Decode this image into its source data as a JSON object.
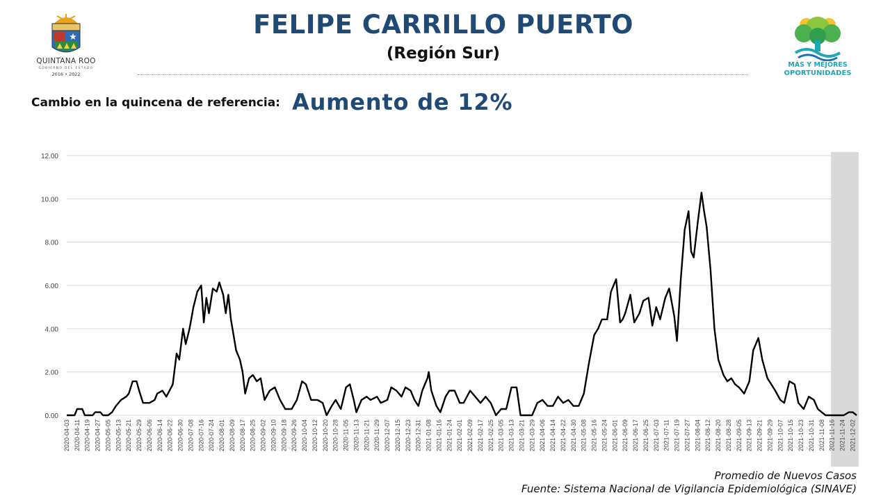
{
  "header": {
    "title": "FELIPE CARRILLO PUERTO",
    "subtitle": "(Región Sur)",
    "left_logo": {
      "brand": "QUINTANA ROO",
      "sub": "GOBIERNO DEL ESTADO",
      "years": "2016 • 2022"
    },
    "right_logo": {
      "line1": "MÁS Y MEJORES",
      "line2": "OPORTUNIDADES",
      "accent": "#1fa8b8"
    }
  },
  "change": {
    "label": "Cambio en la quincena de referencia:",
    "value": "Aumento de 12%"
  },
  "footer": {
    "metric": "Promedio de Nuevos Casos",
    "source": "Fuente: Sistema Nacional de Vigilancia Epidemiológica (SINAVE)"
  },
  "colors": {
    "title": "#1f4a75",
    "line": "#000000",
    "shade": "#d9d9d9",
    "grid": "#d9d9d9"
  },
  "chart_data": {
    "type": "line",
    "title": "",
    "xlabel": "",
    "ylabel": "",
    "ylim": [
      0,
      12
    ],
    "yticks": [
      "0.00",
      "2.00",
      "4.00",
      "6.00",
      "8.00",
      "10.00",
      "12.00"
    ],
    "grid": true,
    "x_start": "2020-04-03",
    "x_end": "2021-12-05",
    "shaded_region": [
      "2021-11-13",
      "2021-12-05"
    ],
    "xticks": [
      "2020-04-03",
      "2020-04-11",
      "2020-04-19",
      "2020-04-27",
      "2020-05-05",
      "2020-05-13",
      "2020-05-21",
      "2020-05-29",
      "2020-06-06",
      "2020-06-14",
      "2020-06-22",
      "2020-06-30",
      "2020-07-08",
      "2020-07-16",
      "2020-07-24",
      "2020-08-01",
      "2020-08-09",
      "2020-08-17",
      "2020-08-25",
      "2020-09-02",
      "2020-09-10",
      "2020-09-18",
      "2020-09-26",
      "2020-10-04",
      "2020-10-12",
      "2020-10-20",
      "2020-10-28",
      "2020-11-05",
      "2020-11-13",
      "2020-11-21",
      "2020-11-29",
      "2020-12-07",
      "2020-12-15",
      "2020-12-23",
      "2020-12-31",
      "2021-01-08",
      "2021-01-16",
      "2021-01-24",
      "2021-02-01",
      "2021-02-09",
      "2021-02-17",
      "2021-02-25",
      "2021-03-05",
      "2021-03-13",
      "2021-03-21",
      "2021-03-29",
      "2021-04-06",
      "2021-04-14",
      "2021-04-22",
      "2021-04-30",
      "2021-05-08",
      "2021-05-16",
      "2021-05-24",
      "2021-06-01",
      "2021-06-09",
      "2021-06-17",
      "2021-06-25",
      "2021-07-03",
      "2021-07-11",
      "2021-07-19",
      "2021-07-27",
      "2021-08-04",
      "2021-08-12",
      "2021-08-20",
      "2021-08-28",
      "2021-09-05",
      "2021-09-13",
      "2021-09-21",
      "2021-09-29",
      "2021-10-07",
      "2021-10-15",
      "2021-10-23",
      "2021-10-31",
      "2021-11-08",
      "2021-11-16",
      "2021-11-24",
      "2021-12-02"
    ],
    "series": [
      {
        "points": [
          [
            "2020-04-03",
            0
          ],
          [
            "2020-04-09",
            0
          ],
          [
            "2020-04-11",
            0.29
          ],
          [
            "2020-04-15",
            0.29
          ],
          [
            "2020-04-17",
            0
          ],
          [
            "2020-04-23",
            0
          ],
          [
            "2020-04-25",
            0.14
          ],
          [
            "2020-04-29",
            0.14
          ],
          [
            "2020-05-01",
            0
          ],
          [
            "2020-05-05",
            0
          ],
          [
            "2020-05-08",
            0.14
          ],
          [
            "2020-05-11",
            0.43
          ],
          [
            "2020-05-15",
            0.71
          ],
          [
            "2020-05-19",
            0.86
          ],
          [
            "2020-05-21",
            1
          ],
          [
            "2020-05-24",
            1.57
          ],
          [
            "2020-05-27",
            1.57
          ],
          [
            "2020-05-29",
            1.14
          ],
          [
            "2020-06-01",
            0.57
          ],
          [
            "2020-06-06",
            0.57
          ],
          [
            "2020-06-10",
            0.71
          ],
          [
            "2020-06-12",
            1
          ],
          [
            "2020-06-16",
            1.14
          ],
          [
            "2020-06-19",
            0.86
          ],
          [
            "2020-06-24",
            1.43
          ],
          [
            "2020-06-27",
            2.86
          ],
          [
            "2020-06-29",
            2.57
          ],
          [
            "2020-07-02",
            4
          ],
          [
            "2020-07-04",
            3.29
          ],
          [
            "2020-07-07",
            4
          ],
          [
            "2020-07-10",
            5
          ],
          [
            "2020-07-13",
            5.71
          ],
          [
            "2020-07-16",
            6
          ],
          [
            "2020-07-18",
            4.29
          ],
          [
            "2020-07-20",
            5.43
          ],
          [
            "2020-07-22",
            4.71
          ],
          [
            "2020-07-25",
            5.86
          ],
          [
            "2020-07-28",
            5.71
          ],
          [
            "2020-07-30",
            6.14
          ],
          [
            "2020-08-02",
            5.57
          ],
          [
            "2020-08-04",
            4.71
          ],
          [
            "2020-08-06",
            5.57
          ],
          [
            "2020-08-08",
            4.43
          ],
          [
            "2020-08-12",
            3
          ],
          [
            "2020-08-15",
            2.57
          ],
          [
            "2020-08-17",
            2
          ],
          [
            "2020-08-19",
            1
          ],
          [
            "2020-08-22",
            1.71
          ],
          [
            "2020-08-25",
            1.86
          ],
          [
            "2020-08-28",
            1.57
          ],
          [
            "2020-08-31",
            1.71
          ],
          [
            "2020-09-03",
            0.71
          ],
          [
            "2020-09-07",
            1.14
          ],
          [
            "2020-09-11",
            1.29
          ],
          [
            "2020-09-15",
            0.71
          ],
          [
            "2020-09-19",
            0.29
          ],
          [
            "2020-09-24",
            0.29
          ],
          [
            "2020-09-28",
            0.71
          ],
          [
            "2020-10-02",
            1.57
          ],
          [
            "2020-10-05",
            1.43
          ],
          [
            "2020-10-09",
            0.71
          ],
          [
            "2020-10-14",
            0.71
          ],
          [
            "2020-10-18",
            0.57
          ],
          [
            "2020-10-21",
            0
          ],
          [
            "2020-10-25",
            0.43
          ],
          [
            "2020-10-28",
            0.71
          ],
          [
            "2020-11-01",
            0.29
          ],
          [
            "2020-11-05",
            1.29
          ],
          [
            "2020-11-08",
            1.43
          ],
          [
            "2020-11-11",
            0.71
          ],
          [
            "2020-11-13",
            0.14
          ],
          [
            "2020-11-17",
            0.71
          ],
          [
            "2020-11-21",
            0.86
          ],
          [
            "2020-11-24",
            0.71
          ],
          [
            "2020-11-29",
            0.86
          ],
          [
            "2020-12-02",
            0.57
          ],
          [
            "2020-12-07",
            0.71
          ],
          [
            "2020-12-10",
            1.29
          ],
          [
            "2020-12-14",
            1.14
          ],
          [
            "2020-12-18",
            0.86
          ],
          [
            "2020-12-21",
            1.29
          ],
          [
            "2020-12-25",
            1.14
          ],
          [
            "2020-12-28",
            0.71
          ],
          [
            "2020-12-31",
            0.43
          ],
          [
            "2021-01-03",
            1.14
          ],
          [
            "2021-01-07",
            1.71
          ],
          [
            "2021-01-08",
            2
          ],
          [
            "2021-01-10",
            1.14
          ],
          [
            "2021-01-14",
            0.43
          ],
          [
            "2021-01-17",
            0.14
          ],
          [
            "2021-01-21",
            0.86
          ],
          [
            "2021-01-24",
            1.14
          ],
          [
            "2021-01-28",
            1.14
          ],
          [
            "2021-02-01",
            0.57
          ],
          [
            "2021-02-04",
            0.57
          ],
          [
            "2021-02-09",
            1.14
          ],
          [
            "2021-02-13",
            0.86
          ],
          [
            "2021-02-17",
            0.57
          ],
          [
            "2021-02-21",
            0.86
          ],
          [
            "2021-02-25",
            0.57
          ],
          [
            "2021-03-01",
            0
          ],
          [
            "2021-03-05",
            0.29
          ],
          [
            "2021-03-09",
            0.29
          ],
          [
            "2021-03-13",
            1.29
          ],
          [
            "2021-03-17",
            1.29
          ],
          [
            "2021-03-20",
            0
          ],
          [
            "2021-03-29",
            0
          ],
          [
            "2021-04-02",
            0.57
          ],
          [
            "2021-04-06",
            0.71
          ],
          [
            "2021-04-10",
            0.43
          ],
          [
            "2021-04-14",
            0.43
          ],
          [
            "2021-04-18",
            0.86
          ],
          [
            "2021-04-22",
            0.57
          ],
          [
            "2021-04-26",
            0.71
          ],
          [
            "2021-04-30",
            0.43
          ],
          [
            "2021-05-04",
            0.43
          ],
          [
            "2021-05-08",
            1
          ],
          [
            "2021-05-12",
            2.43
          ],
          [
            "2021-05-16",
            3.71
          ],
          [
            "2021-05-19",
            4
          ],
          [
            "2021-05-22",
            4.43
          ],
          [
            "2021-05-26",
            4.43
          ],
          [
            "2021-05-29",
            5.71
          ],
          [
            "2021-06-02",
            6.29
          ],
          [
            "2021-06-05",
            4.29
          ],
          [
            "2021-06-07",
            4.43
          ],
          [
            "2021-06-09",
            4.71
          ],
          [
            "2021-06-13",
            5.57
          ],
          [
            "2021-06-16",
            4.29
          ],
          [
            "2021-06-20",
            4.71
          ],
          [
            "2021-06-23",
            5.29
          ],
          [
            "2021-06-27",
            5.43
          ],
          [
            "2021-06-30",
            4.14
          ],
          [
            "2021-07-03",
            5
          ],
          [
            "2021-07-06",
            4.43
          ],
          [
            "2021-07-10",
            5.43
          ],
          [
            "2021-07-13",
            5.86
          ],
          [
            "2021-07-17",
            4.57
          ],
          [
            "2021-07-19",
            3.43
          ],
          [
            "2021-07-22",
            6.29
          ],
          [
            "2021-07-25",
            8.57
          ],
          [
            "2021-07-28",
            9.43
          ],
          [
            "2021-07-30",
            7.57
          ],
          [
            "2021-08-01",
            7.29
          ],
          [
            "2021-08-04",
            8.86
          ],
          [
            "2021-08-07",
            10.29
          ],
          [
            "2021-08-09",
            9.43
          ],
          [
            "2021-08-11",
            8.71
          ],
          [
            "2021-08-14",
            6.71
          ],
          [
            "2021-08-17",
            4
          ],
          [
            "2021-08-20",
            2.57
          ],
          [
            "2021-08-24",
            1.86
          ],
          [
            "2021-08-27",
            1.57
          ],
          [
            "2021-08-30",
            1.71
          ],
          [
            "2021-09-02",
            1.43
          ],
          [
            "2021-09-05",
            1.29
          ],
          [
            "2021-09-09",
            1
          ],
          [
            "2021-09-13",
            1.57
          ],
          [
            "2021-09-16",
            3
          ],
          [
            "2021-09-20",
            3.57
          ],
          [
            "2021-09-23",
            2.57
          ],
          [
            "2021-09-27",
            1.71
          ],
          [
            "2021-09-30",
            1.43
          ],
          [
            "2021-10-03",
            1.14
          ],
          [
            "2021-10-07",
            0.71
          ],
          [
            "2021-10-10",
            0.57
          ],
          [
            "2021-10-14",
            1.57
          ],
          [
            "2021-10-18",
            1.43
          ],
          [
            "2021-10-21",
            0.57
          ],
          [
            "2021-10-25",
            0.29
          ],
          [
            "2021-10-29",
            0.86
          ],
          [
            "2021-11-02",
            0.71
          ],
          [
            "2021-11-05",
            0.29
          ],
          [
            "2021-11-08",
            0.14
          ],
          [
            "2021-11-11",
            0
          ],
          [
            "2021-11-25",
            0
          ],
          [
            "2021-11-29",
            0.14
          ],
          [
            "2021-12-02",
            0.14
          ],
          [
            "2021-12-05",
            0
          ]
        ]
      }
    ]
  }
}
